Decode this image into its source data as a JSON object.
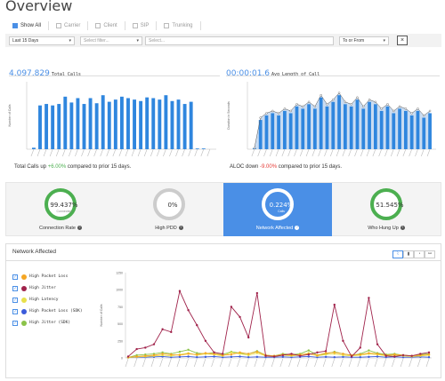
{
  "page": {
    "title": "Overview"
  },
  "tabs": [
    {
      "label": "Show All",
      "active": true
    },
    {
      "label": "Carrier",
      "active": false
    },
    {
      "label": "Client",
      "active": false
    },
    {
      "label": "SIP",
      "active": false
    },
    {
      "label": "Trunking",
      "active": false
    }
  ],
  "filters": {
    "period": "Last 15 Days",
    "filter_placeholder": "Select filter...",
    "select_placeholder": "Select...",
    "direction": "To or From",
    "clear_label": "×"
  },
  "total_calls": {
    "value": "4,097,829",
    "label": "Total Calls",
    "footer_prefix": "Total Calls up",
    "footer_change": "+6.00%",
    "footer_suffix": "compared to prior 15 days."
  },
  "aloc": {
    "value": "00:00:01.6",
    "label": "Avg Length of Call",
    "footer_prefix": "ALOC down",
    "footer_change": "-9.00%",
    "footer_suffix": "compared to prior 15 days."
  },
  "kpis": [
    {
      "value": "99.437%",
      "sub": "Connected",
      "label": "Connection Rate",
      "ring": "#4caf50",
      "active": false
    },
    {
      "value": "0%",
      "sub": "",
      "label": "High PDD",
      "ring": "#cccccc",
      "active": false
    },
    {
      "value": "0.224%",
      "sub": "Calls",
      "label": "Network Affected",
      "ring": "#ffffff",
      "active": true
    },
    {
      "value": "51.545%",
      "sub": "",
      "label": "Who Hung Up",
      "ring": "#4caf50",
      "active": false
    }
  ],
  "network_affected": {
    "title": "Network Affected",
    "view_icons": [
      "line-chart-icon",
      "bar-chart-icon",
      "pie-chart-icon",
      "link-icon"
    ],
    "legend": [
      {
        "label": "High Packet Loss",
        "color": "#f5a623"
      },
      {
        "label": "High Jitter",
        "color": "#a0234b"
      },
      {
        "label": "High Latency",
        "color": "#e8e04a"
      },
      {
        "label": "High Packet Loss (SDK)",
        "color": "#3b5bdb"
      },
      {
        "label": "High Jitter (SDK)",
        "color": "#8bc34a"
      }
    ]
  },
  "chart_data": [
    {
      "type": "bar",
      "ylabel": "Number of Calls",
      "bar_color": "#2f86de",
      "values": [
        2,
        60,
        62,
        60,
        62,
        72,
        64,
        70,
        62,
        70,
        63,
        74,
        65,
        68,
        72,
        70,
        68,
        66,
        71,
        70,
        68,
        74,
        66,
        68,
        62,
        65,
        1,
        1,
        0
      ]
    },
    {
      "type": "bar",
      "ylabel": "Duration in Seconds",
      "ylim": [
        0,
        3
      ],
      "bar_color": "#2f86de",
      "area_color": "#c9dcf2",
      "values": [
        0.05,
        1.3,
        1.5,
        1.6,
        1.5,
        1.7,
        1.6,
        1.9,
        1.8,
        2.0,
        1.8,
        2.3,
        1.9,
        2.1,
        2.4,
        2.0,
        1.9,
        2.2,
        1.8,
        2.1,
        2.0,
        1.7,
        1.9,
        1.6,
        1.8,
        1.7,
        1.5,
        1.7,
        1.4,
        1.6
      ],
      "prior": [
        0.05,
        1.4,
        1.6,
        1.7,
        1.6,
        1.8,
        1.7,
        2.0,
        1.9,
        2.1,
        1.9,
        2.4,
        2.0,
        2.2,
        2.5,
        2.1,
        2.0,
        2.3,
        1.9,
        2.2,
        2.1,
        1.8,
        2.0,
        1.7,
        1.9,
        1.8,
        1.6,
        1.8,
        1.5,
        1.7
      ]
    },
    {
      "type": "line",
      "ylabel": "Number of Calls",
      "ylim": [
        0,
        1250
      ],
      "yticks": [
        0,
        250,
        500,
        750,
        1000,
        1250
      ],
      "series": [
        {
          "name": "High Jitter",
          "color": "#a0234b",
          "values": [
            20,
            130,
            150,
            200,
            420,
            380,
            980,
            700,
            480,
            250,
            80,
            60,
            750,
            600,
            300,
            950,
            30,
            20,
            40,
            60,
            30,
            50,
            80,
            100,
            780,
            250,
            20,
            150,
            880,
            200,
            30,
            20,
            40,
            30,
            60,
            80
          ]
        },
        {
          "name": "High Packet Loss",
          "color": "#f5a623",
          "values": [
            10,
            20,
            30,
            40,
            60,
            50,
            40,
            60,
            50,
            70,
            60,
            40,
            50,
            80,
            60,
            90,
            40,
            30,
            50,
            40,
            50,
            60,
            40,
            70,
            80,
            60,
            40,
            50,
            70,
            60,
            40,
            50,
            40,
            30,
            40,
            50
          ]
        },
        {
          "name": "High Latency",
          "color": "#e8e04a",
          "values": [
            5,
            15,
            20,
            30,
            40,
            30,
            50,
            70,
            40,
            60,
            50,
            30,
            80,
            60,
            40,
            70,
            30,
            20,
            40,
            30,
            40,
            70,
            30,
            50,
            60,
            40,
            30,
            40,
            60,
            50,
            30,
            40,
            30,
            20,
            30,
            40
          ]
        },
        {
          "name": "High Packet Loss (SDK)",
          "color": "#3b5bdb",
          "values": [
            5,
            10,
            10,
            15,
            20,
            10,
            15,
            20,
            10,
            15,
            20,
            10,
            15,
            20,
            10,
            15,
            10,
            10,
            15,
            10,
            15,
            20,
            10,
            15,
            10,
            15,
            10,
            10,
            15,
            20,
            10,
            15,
            10,
            10,
            15,
            10
          ]
        },
        {
          "name": "High Jitter (SDK)",
          "color": "#8bc34a",
          "values": [
            8,
            40,
            50,
            60,
            80,
            60,
            90,
            120,
            70,
            60,
            80,
            50,
            90,
            70,
            60,
            100,
            40,
            30,
            60,
            50,
            60,
            110,
            40,
            60,
            90,
            60,
            40,
            60,
            110,
            70,
            50,
            60,
            40,
            30,
            50,
            60
          ]
        }
      ]
    }
  ]
}
